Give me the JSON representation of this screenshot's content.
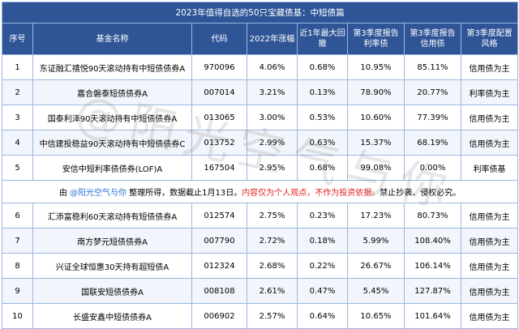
{
  "title": "2023年值得自选的50只宝藏债基：中短债篇",
  "headers": [
    "序号",
    "基金名称",
    "代码",
    "2022年涨幅",
    "近1年最大回撤",
    "第3季度报告利率债",
    "第3季度报告信用债",
    "第3季度配置风格"
  ],
  "rows_top": [
    {
      "no": "1",
      "name": "东证融汇禧悦90天滚动持有中短债债券A",
      "code": "970096",
      "ret": "4.06%",
      "dd": "0.68%",
      "rate": "10.95%",
      "credit": "85.11%",
      "style": "信用债为主"
    },
    {
      "no": "2",
      "name": "嘉合磐泰短债债券A",
      "code": "007014",
      "ret": "3.21%",
      "dd": "0.13%",
      "rate": "78.90%",
      "credit": "20.77%",
      "style": "利率债为主"
    },
    {
      "no": "3",
      "name": "国泰利泽90天滚动持有中短债债券A",
      "code": "013065",
      "ret": "3.00%",
      "dd": "0.53%",
      "rate": "10.60%",
      "credit": "77.39%",
      "style": "信用债为主"
    },
    {
      "no": "4",
      "name": "中信建投稳益90天滚动持有中短债债券C",
      "code": "013752",
      "ret": "2.99%",
      "dd": "0.63%",
      "rate": "15.37%",
      "credit": "68.19%",
      "style": "信用债为主"
    },
    {
      "no": "5",
      "name": "安信中短利率债债券(LOF)A",
      "code": "167504",
      "ret": "2.95%",
      "dd": "0.68%",
      "rate": "99.08%",
      "credit": "0.00%",
      "style": "利率债基"
    }
  ],
  "note": {
    "prefix": "由 ",
    "handle": "@阳光空气与你",
    "middle": " 整理所得，数据截止1月13日。",
    "red": "内容仅为个人观点，不作为投资依据。",
    "suffix": "禁止抄袭、侵权必究。"
  },
  "rows_bottom": [
    {
      "no": "6",
      "name": "汇添富稳利60天滚动持有短债债券A",
      "code": "012574",
      "ret": "2.75%",
      "dd": "0.23%",
      "rate": "17.23%",
      "credit": "80.73%",
      "style": "信用债为主"
    },
    {
      "no": "7",
      "name": "南方梦元短债债券A",
      "code": "007790",
      "ret": "2.72%",
      "dd": "0.18%",
      "rate": "5.99%",
      "credit": "108.40%",
      "style": "信用债为主"
    },
    {
      "no": "8",
      "name": "兴证全球恒惠30天持有超短债A",
      "code": "012324",
      "ret": "2.68%",
      "dd": "0.22%",
      "rate": "26.67%",
      "credit": "106.14%",
      "style": "信用债为主"
    },
    {
      "no": "9",
      "name": "国联安短债债券A",
      "code": "008108",
      "ret": "2.61%",
      "dd": "0.47%",
      "rate": "5.45%",
      "credit": "127.87%",
      "style": "信用债为主"
    },
    {
      "no": "10",
      "name": "长盛安鑫中短债债券A",
      "code": "006902",
      "ret": "2.57%",
      "dd": "0.64%",
      "rate": "10.65%",
      "credit": "101.64%",
      "style": "信用债为主"
    }
  ],
  "watermark": "@阳光空气与你"
}
